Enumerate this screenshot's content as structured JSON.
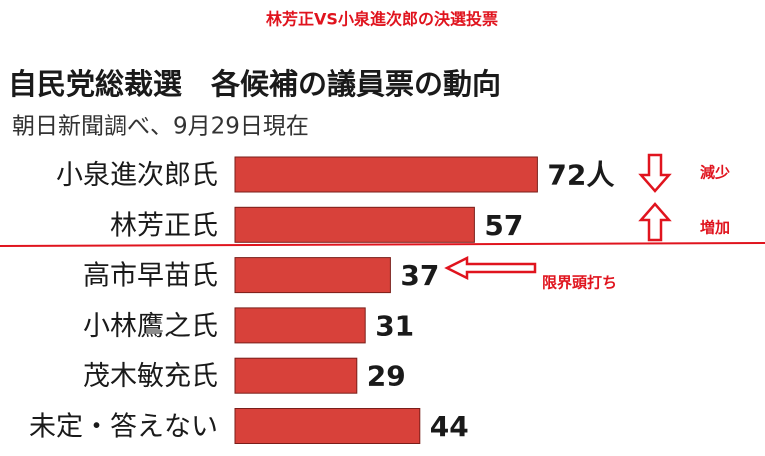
{
  "chart_data": {
    "type": "barh",
    "suptitle": "林芳正VS小泉進次郎の決選投票",
    "title": "自民党総裁選　各候補の議員票の動向",
    "subtitle": "朝日新聞調べ、9月29日現在",
    "categories": [
      "小泉進次郎氏",
      "林芳正氏",
      "高市早苗氏",
      "小林鷹之氏",
      "茂木敏充氏",
      "未定・答えない"
    ],
    "values": [
      72,
      57,
      37,
      31,
      29,
      44
    ],
    "value_labels": [
      "72人",
      "57",
      "37",
      "31",
      "29",
      "44"
    ],
    "color": "#d8413a",
    "annotations": [
      "減少",
      "増加",
      "限界頭打ち"
    ]
  }
}
